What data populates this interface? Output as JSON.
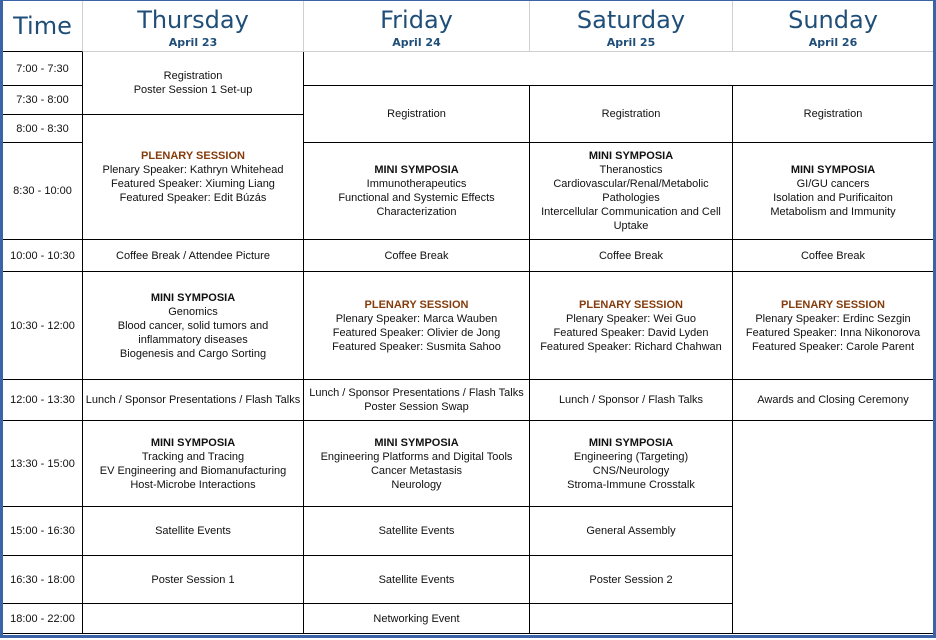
{
  "header": {
    "time_label": "Time",
    "days": [
      {
        "day": "Thursday",
        "date": "April 23"
      },
      {
        "day": "Friday",
        "date": "April 24"
      },
      {
        "day": "Saturday",
        "date": "April 25"
      },
      {
        "day": "Sunday",
        "date": "April 26"
      }
    ]
  },
  "times": [
    "7:00 - 7:30",
    "7:30 - 8:00",
    "8:00 - 8:30",
    "8:30 - 10:00",
    "10:00 - 10:30",
    "10:30 - 12:00",
    "12:00 - 13:30",
    "13:30 - 15:00",
    "15:00 - 16:30",
    "16:30 - 18:00",
    "18:00 - 22:00"
  ],
  "colors": {
    "header_text": "#1f4e79",
    "plenary_title": "#843c0c",
    "frame": "#3b64a8"
  },
  "sessions": [
    {
      "id": "thu-reg",
      "title": "",
      "lines": [
        "Registration",
        "Poster Session 1 Set-up"
      ]
    },
    {
      "id": "thu-plen",
      "title": "PLENARY SESSION",
      "type": "plenary",
      "lines": [
        "Plenary Speaker: Kathryn Whitehead",
        "Featured Speaker: Xiuming Liang",
        "Featured Speaker: Edit Búzás"
      ]
    },
    {
      "id": "thu-coffee",
      "title": "",
      "lines": [
        "Coffee Break  / Attendee Picture"
      ]
    },
    {
      "id": "thu-mini1",
      "title": "MINI SYMPOSIA",
      "type": "mini",
      "lines": [
        "Genomics",
        "Blood cancer, solid tumors and inflammatory diseases",
        "Biogenesis and Cargo Sorting"
      ]
    },
    {
      "id": "thu-lunch",
      "title": "",
      "lines": [
        "Lunch / Sponsor Presentations / Flash Talks"
      ]
    },
    {
      "id": "thu-mini2",
      "title": "MINI SYMPOSIA",
      "type": "mini",
      "lines": [
        "Tracking and Tracing",
        "EV Engineering and Biomanufacturing",
        "Host-Microbe Interactions"
      ]
    },
    {
      "id": "thu-sat",
      "title": "",
      "lines": [
        "Satellite Events"
      ]
    },
    {
      "id": "thu-poster",
      "title": "",
      "lines": [
        "Poster Session 1"
      ]
    },
    {
      "id": "thu-empty",
      "title": "",
      "lines": []
    },
    {
      "id": "top-empty",
      "title": "",
      "lines": []
    },
    {
      "id": "fri-reg",
      "title": "",
      "lines": [
        "Registration"
      ]
    },
    {
      "id": "fri-mini1",
      "title": "MINI SYMPOSIA",
      "type": "mini",
      "lines": [
        "Immunotherapeutics",
        "Functional and Systemic Effects",
        "Characterization"
      ]
    },
    {
      "id": "fri-coffee",
      "title": "",
      "lines": [
        "Coffee Break"
      ]
    },
    {
      "id": "fri-plen",
      "title": "PLENARY SESSION",
      "type": "plenary",
      "lines": [
        "Plenary Speaker: Marca Wauben",
        "Featured Speaker: Olivier de Jong",
        "Featured Speaker: Susmita Sahoo"
      ]
    },
    {
      "id": "fri-lunch",
      "title": "",
      "lines": [
        "Lunch / Sponsor Presentations / Flash Talks",
        "Poster Session Swap"
      ]
    },
    {
      "id": "fri-mini2",
      "title": "MINI SYMPOSIA",
      "type": "mini",
      "lines": [
        "Engineering Platforms and Digital Tools",
        "Cancer Metastasis",
        "Neurology"
      ]
    },
    {
      "id": "fri-sat1",
      "title": "",
      "lines": [
        "Satellite Events"
      ]
    },
    {
      "id": "fri-sat2",
      "title": "",
      "lines": [
        "Satellite Events"
      ]
    },
    {
      "id": "fri-net",
      "title": "",
      "lines": [
        "Networking Event"
      ]
    },
    {
      "id": "sat-reg",
      "title": "",
      "lines": [
        "Registration"
      ]
    },
    {
      "id": "sat-mini1",
      "title": "MINI SYMPOSIA",
      "type": "mini",
      "lines": [
        "Theranostics",
        "Cardiovascular/Renal/Metabolic Pathologies",
        "Intercellular Communication and Cell Uptake"
      ]
    },
    {
      "id": "sat-coffee",
      "title": "",
      "lines": [
        "Coffee Break"
      ]
    },
    {
      "id": "sat-plen",
      "title": "PLENARY SESSION",
      "type": "plenary",
      "lines": [
        "Plenary Speaker: Wei Guo",
        "Featured Speaker: David Lyden",
        "Featured Speaker: Richard Chahwan"
      ]
    },
    {
      "id": "sat-lunch",
      "title": "",
      "lines": [
        "Lunch / Sponsor / Flash Talks"
      ]
    },
    {
      "id": "sat-mini2",
      "title": "MINI SYMPOSIA",
      "type": "mini",
      "lines": [
        "Engineering (Targeting)",
        "CNS/Neurology",
        "Stroma-Immune Crosstalk"
      ]
    },
    {
      "id": "sat-ga",
      "title": "",
      "lines": [
        "General Assembly"
      ]
    },
    {
      "id": "sat-poster",
      "title": "",
      "lines": [
        "Poster Session 2"
      ]
    },
    {
      "id": "sat-empty",
      "title": "",
      "lines": []
    },
    {
      "id": "sun-reg",
      "title": "",
      "lines": [
        "Registration"
      ]
    },
    {
      "id": "sun-mini",
      "title": "MINI SYMPOSIA",
      "type": "mini",
      "lines": [
        "GI/GU cancers",
        "Isolation and Purificaiton",
        "Metabolism and Immunity"
      ]
    },
    {
      "id": "sun-coffee",
      "title": "",
      "lines": [
        "Coffee Break"
      ]
    },
    {
      "id": "sun-plen",
      "title": "PLENARY SESSION",
      "type": "plenary",
      "lines": [
        "Plenary Speaker: Erdinc Sezgin",
        "Featured Speaker: Inna Nikonorova",
        "Featured Speaker: Carole Parent"
      ]
    },
    {
      "id": "sun-awards",
      "title": "",
      "lines": [
        "Awards and Closing Ceremony"
      ]
    },
    {
      "id": "sun-empty",
      "title": "",
      "lines": []
    }
  ]
}
